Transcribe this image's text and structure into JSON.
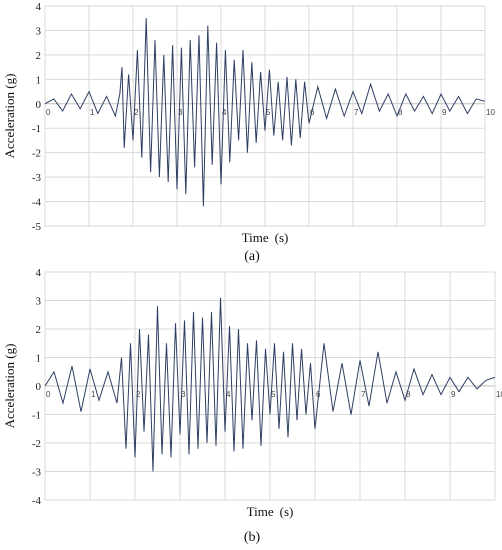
{
  "chart_data": [
    {
      "type": "line",
      "panel_label": "(a)",
      "xlabel": "Time",
      "xlabel_unit": "(s)",
      "ylabel": "Acceleration (g)",
      "xlim": [
        0,
        10
      ],
      "ylim": [
        -5,
        4
      ],
      "x_ticks": [
        "0",
        "1",
        "2",
        "3",
        "4",
        "5",
        "6",
        "7",
        "8",
        "9",
        "10"
      ],
      "y_ticks": [
        "4",
        "3",
        "2",
        "1",
        "0",
        "-1",
        "-2",
        "-3",
        "-4",
        "-5"
      ],
      "grid": true,
      "line_color": "#2e3f63",
      "series": [
        {
          "x": [
            0,
            0.2,
            0.4,
            0.6,
            0.8,
            1.0,
            1.2,
            1.4,
            1.6,
            1.7,
            1.75,
            1.8,
            1.9,
            2.0,
            2.1,
            2.2,
            2.3,
            2.4,
            2.5,
            2.6,
            2.7,
            2.8,
            2.9,
            3.0,
            3.1,
            3.2,
            3.3,
            3.4,
            3.5,
            3.6,
            3.7,
            3.8,
            3.9,
            4.0,
            4.1,
            4.2,
            4.3,
            4.4,
            4.5,
            4.6,
            4.7,
            4.8,
            4.9,
            5.0,
            5.1,
            5.2,
            5.3,
            5.4,
            5.5,
            5.6,
            5.7,
            5.8,
            5.9,
            6.0,
            6.2,
            6.4,
            6.6,
            6.8,
            7.0,
            7.2,
            7.4,
            7.6,
            7.8,
            8.0,
            8.2,
            8.4,
            8.6,
            8.8,
            9.0,
            9.2,
            9.4,
            9.6,
            9.8,
            10.0
          ],
          "y": [
            0,
            0.2,
            -0.3,
            0.4,
            -0.2,
            0.5,
            -0.4,
            0.3,
            -0.5,
            0.4,
            1.5,
            -1.8,
            1.2,
            -1.5,
            2.2,
            -2.2,
            3.5,
            -2.8,
            2.6,
            -3.0,
            2.0,
            -3.2,
            2.4,
            -3.5,
            2.3,
            -3.7,
            2.6,
            -2.6,
            2.8,
            -4.2,
            3.2,
            -2.5,
            2.5,
            -3.3,
            2.2,
            -2.4,
            1.8,
            -1.5,
            2.2,
            -2.0,
            1.7,
            -1.6,
            1.3,
            -1.1,
            1.4,
            -1.3,
            0.9,
            -1.5,
            1.1,
            -1.7,
            1.0,
            -1.4,
            0.9,
            -0.8,
            0.7,
            -0.6,
            0.6,
            -0.5,
            0.5,
            -0.4,
            0.8,
            -0.3,
            0.4,
            -0.5,
            0.4,
            -0.3,
            0.3,
            -0.4,
            0.4,
            -0.3,
            0.3,
            -0.4,
            0.2,
            0.1
          ]
        }
      ]
    },
    {
      "type": "line",
      "panel_label": "(b)",
      "xlabel": "Time",
      "xlabel_unit": "(s)",
      "ylabel": "Acceleration (g)",
      "xlim": [
        0,
        10
      ],
      "ylim": [
        -4,
        4
      ],
      "x_ticks": [
        "0",
        "1",
        "2",
        "3",
        "4",
        "5",
        "6",
        "7",
        "8",
        "9",
        "10"
      ],
      "y_ticks": [
        "4",
        "3",
        "2",
        "1",
        "0",
        "-1",
        "-2",
        "-3",
        "-4"
      ],
      "grid": true,
      "line_color": "#2e3f63",
      "series": [
        {
          "x": [
            0,
            0.2,
            0.4,
            0.6,
            0.8,
            1.0,
            1.2,
            1.4,
            1.6,
            1.7,
            1.8,
            1.9,
            2.0,
            2.1,
            2.2,
            2.3,
            2.4,
            2.5,
            2.6,
            2.7,
            2.8,
            2.9,
            3.0,
            3.1,
            3.2,
            3.3,
            3.4,
            3.5,
            3.6,
            3.7,
            3.8,
            3.9,
            4.0,
            4.1,
            4.2,
            4.3,
            4.4,
            4.5,
            4.6,
            4.7,
            4.8,
            4.9,
            5.0,
            5.1,
            5.2,
            5.3,
            5.4,
            5.5,
            5.6,
            5.7,
            5.8,
            5.9,
            6.0,
            6.2,
            6.4,
            6.6,
            6.8,
            7.0,
            7.2,
            7.4,
            7.6,
            7.8,
            8.0,
            8.2,
            8.4,
            8.6,
            8.8,
            9.0,
            9.2,
            9.4,
            9.6,
            9.8,
            10.0
          ],
          "y": [
            0,
            0.5,
            -0.6,
            0.7,
            -0.9,
            0.6,
            -0.5,
            0.5,
            -0.6,
            1.0,
            -2.2,
            1.5,
            -2.5,
            2.0,
            -1.6,
            1.8,
            -3.0,
            2.8,
            -2.4,
            1.5,
            -2.5,
            2.2,
            -1.7,
            2.3,
            -2.4,
            2.6,
            -2.2,
            2.4,
            -2.0,
            2.6,
            -2.1,
            3.1,
            -1.6,
            2.1,
            -2.3,
            2.0,
            -2.2,
            1.5,
            -1.2,
            1.6,
            -2.1,
            1.3,
            -1.0,
            1.5,
            -1.5,
            1.2,
            -1.8,
            1.5,
            -1.2,
            1.3,
            -1.0,
            0.8,
            -1.5,
            1.5,
            -0.9,
            0.8,
            -1.0,
            0.9,
            -0.7,
            1.2,
            -0.6,
            0.5,
            -0.5,
            0.6,
            -0.3,
            0.4,
            -0.3,
            0.3,
            -0.2,
            0.3,
            -0.1,
            0.2,
            0.3
          ]
        }
      ]
    }
  ]
}
